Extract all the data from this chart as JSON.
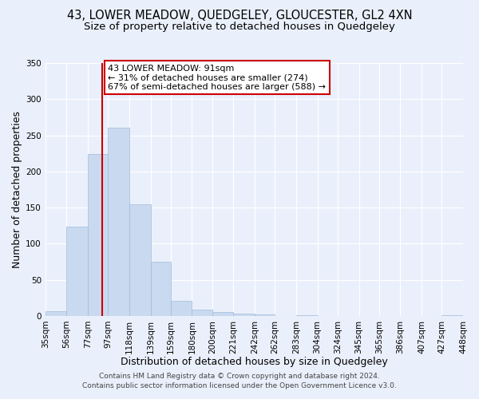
{
  "title_line1": "43, LOWER MEADOW, QUEDGELEY, GLOUCESTER, GL2 4XN",
  "title_line2": "Size of property relative to detached houses in Quedgeley",
  "xlabel": "Distribution of detached houses by size in Quedgeley",
  "ylabel": "Number of detached properties",
  "bin_edges": [
    35,
    56,
    77,
    97,
    118,
    139,
    159,
    180,
    200,
    221,
    242,
    262,
    283,
    304,
    324,
    345,
    365,
    386,
    407,
    427,
    448
  ],
  "bin_labels": [
    "35sqm",
    "56sqm",
    "77sqm",
    "97sqm",
    "118sqm",
    "139sqm",
    "159sqm",
    "180sqm",
    "200sqm",
    "221sqm",
    "242sqm",
    "262sqm",
    "283sqm",
    "304sqm",
    "324sqm",
    "345sqm",
    "365sqm",
    "386sqm",
    "407sqm",
    "427sqm",
    "448sqm"
  ],
  "bar_heights": [
    6,
    123,
    224,
    261,
    154,
    75,
    21,
    9,
    5,
    3,
    2,
    0,
    1,
    0,
    0,
    0,
    0,
    0,
    0,
    1
  ],
  "bar_color": "#c9d9f0",
  "bar_edge_color": "#a0bcd8",
  "vline_color": "#cc0000",
  "vline_x": 91,
  "ylim": [
    0,
    350
  ],
  "yticks": [
    0,
    50,
    100,
    150,
    200,
    250,
    300,
    350
  ],
  "annotation_title": "43 LOWER MEADOW: 91sqm",
  "annotation_line2": "← 31% of detached houses are smaller (274)",
  "annotation_line3": "67% of semi-detached houses are larger (588) →",
  "annotation_box_color": "#ffffff",
  "annotation_box_edge": "#cc0000",
  "footer_line1": "Contains HM Land Registry data © Crown copyright and database right 2024.",
  "footer_line2": "Contains public sector information licensed under the Open Government Licence v3.0.",
  "background_color": "#eaf0fb",
  "plot_bg_color": "#eaf0fb",
  "grid_color": "#ffffff",
  "title_fontsize": 10.5,
  "subtitle_fontsize": 9.5,
  "axis_label_fontsize": 9,
  "tick_fontsize": 7.5,
  "annotation_fontsize": 8,
  "footer_fontsize": 6.5
}
